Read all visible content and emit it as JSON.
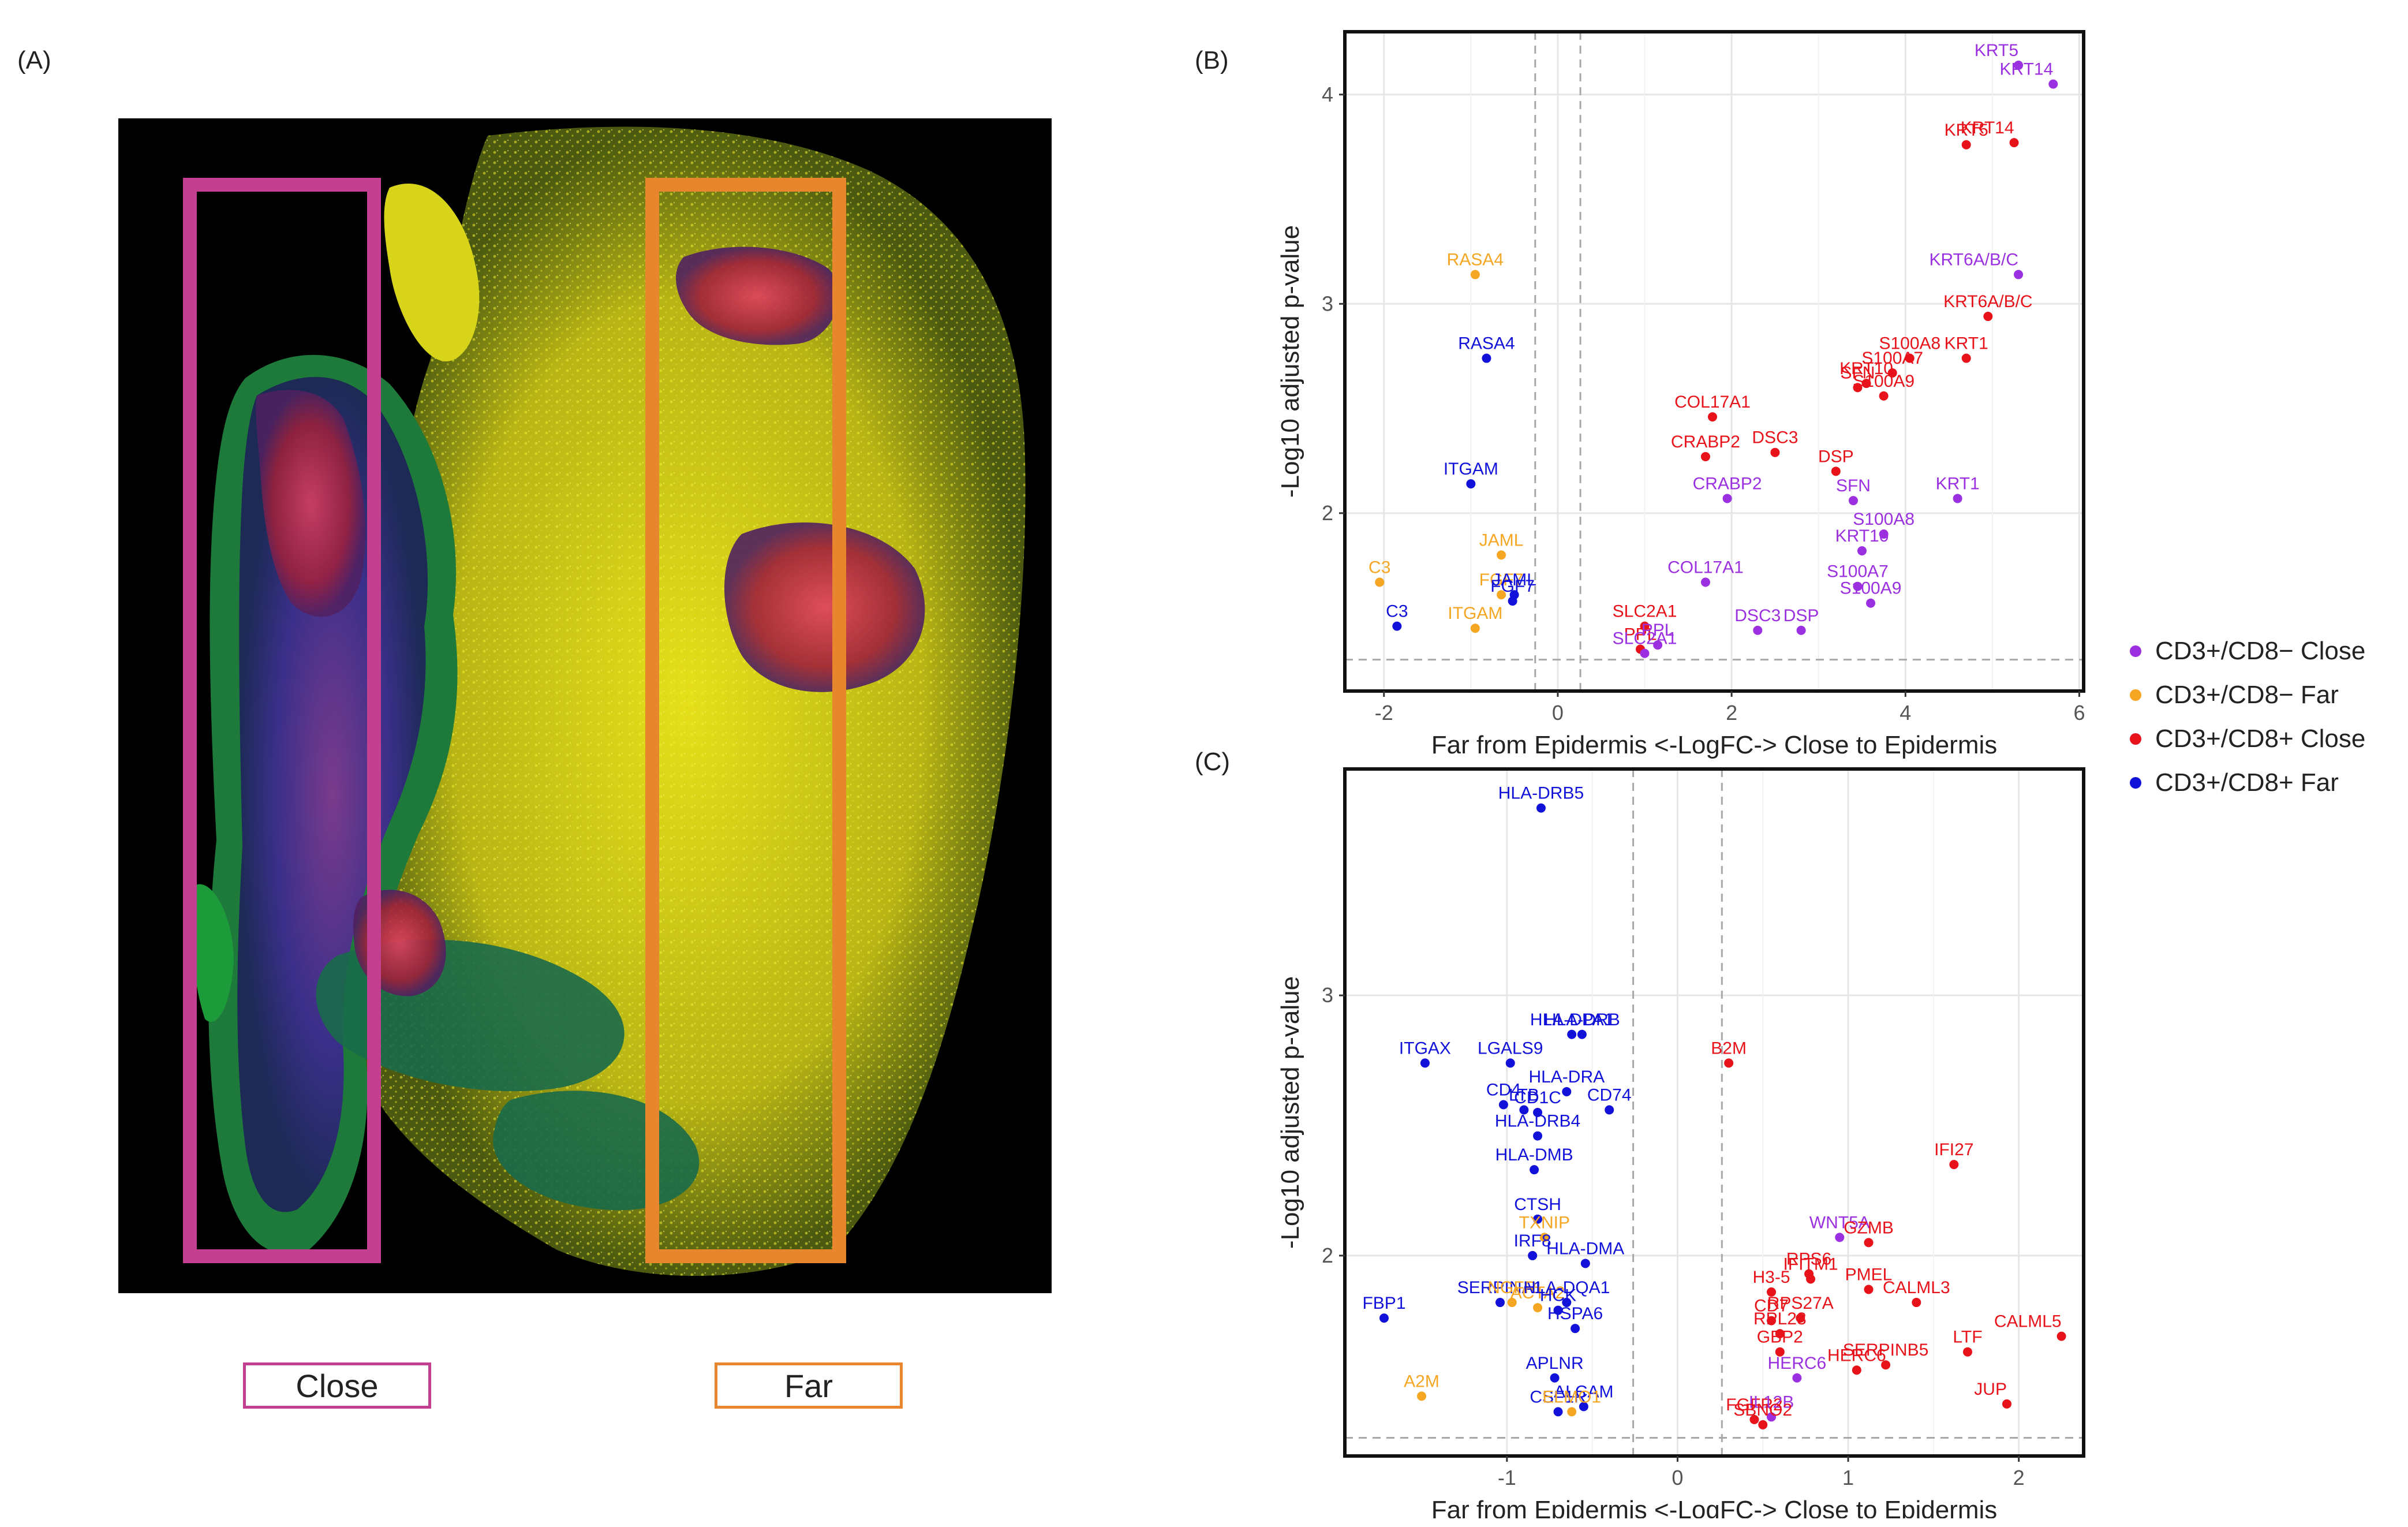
{
  "panels": {
    "a": "(A)",
    "b": "(B)",
    "c": "(C)"
  },
  "micrograph": {
    "regions": [
      {
        "label": "Close",
        "color": "#c2408f"
      },
      {
        "label": "Far",
        "color": "#e8862e"
      }
    ]
  },
  "colors": {
    "Close8m": "#9b30e0",
    "Far8m": "#f5a623",
    "Close8p": "#e8121a",
    "Far8p": "#1111d9"
  },
  "legend": [
    {
      "key": "Close8m",
      "label": "CD3+/CD8− Close"
    },
    {
      "key": "Far8m",
      "label": "CD3+/CD8− Far"
    },
    {
      "key": "Close8p",
      "label": "CD3+/CD8+ Close"
    },
    {
      "key": "Far8p",
      "label": "CD3+/CD8+ Far"
    }
  ],
  "chart_data": [
    {
      "id": "B",
      "type": "scatter",
      "xlabel": "Far from Epidermis <-LogFC-> Close to Epidermis",
      "ylabel": "-Log10 adjusted p-value",
      "xlim": [
        -2.45,
        6.05
      ],
      "ylim": [
        1.15,
        4.3
      ],
      "xticks": [
        -2,
        0,
        2,
        4,
        6
      ],
      "yticks": [
        2,
        3,
        4
      ],
      "vlines": [
        -0.26,
        0.26
      ],
      "hline": 1.3,
      "points": [
        {
          "g": "Close8m",
          "x": 5.3,
          "y": 4.14,
          "label": "KRT5"
        },
        {
          "g": "Close8m",
          "x": 5.7,
          "y": 4.05,
          "label": "KRT14"
        },
        {
          "g": "Close8p",
          "x": 4.7,
          "y": 3.76,
          "label": "KRT5"
        },
        {
          "g": "Close8p",
          "x": 5.25,
          "y": 3.77,
          "label": "KRT14"
        },
        {
          "g": "Close8m",
          "x": 5.3,
          "y": 3.14,
          "label": "KRT6A/B/C"
        },
        {
          "g": "Close8p",
          "x": 4.95,
          "y": 2.94,
          "label": "KRT6A/B/C"
        },
        {
          "g": "Close8p",
          "x": 3.85,
          "y": 2.67,
          "label": "S100A7"
        },
        {
          "g": "Close8p",
          "x": 4.05,
          "y": 2.74,
          "label": "S100A8"
        },
        {
          "g": "Close8p",
          "x": 3.55,
          "y": 2.62,
          "label": "KRT10"
        },
        {
          "g": "Close8p",
          "x": 4.7,
          "y": 2.74,
          "label": "KRT1"
        },
        {
          "g": "Close8p",
          "x": 3.45,
          "y": 2.6,
          "label": "SFN"
        },
        {
          "g": "Close8p",
          "x": 3.75,
          "y": 2.56,
          "label": "S100A9"
        },
        {
          "g": "Close8p",
          "x": 1.78,
          "y": 2.46,
          "label": "COL17A1"
        },
        {
          "g": "Close8p",
          "x": 2.5,
          "y": 2.29,
          "label": "DSC3"
        },
        {
          "g": "Close8p",
          "x": 1.7,
          "y": 2.27,
          "label": "CRABP2"
        },
        {
          "g": "Close8p",
          "x": 3.2,
          "y": 2.2,
          "label": "DSP"
        },
        {
          "g": "Close8m",
          "x": 1.95,
          "y": 2.07,
          "label": "CRABP2"
        },
        {
          "g": "Close8m",
          "x": 3.4,
          "y": 2.06,
          "label": "SFN"
        },
        {
          "g": "Close8m",
          "x": 4.6,
          "y": 2.07,
          "label": "KRT1"
        },
        {
          "g": "Close8m",
          "x": 3.75,
          "y": 1.9,
          "label": "S100A8"
        },
        {
          "g": "Close8m",
          "x": 3.5,
          "y": 1.82,
          "label": "KRT10"
        },
        {
          "g": "Close8m",
          "x": 1.7,
          "y": 1.67,
          "label": "COL17A1"
        },
        {
          "g": "Close8m",
          "x": 3.45,
          "y": 1.65,
          "label": "S100A7"
        },
        {
          "g": "Close8m",
          "x": 3.6,
          "y": 1.57,
          "label": "S100A9"
        },
        {
          "g": "Close8p",
          "x": 1.0,
          "y": 1.46,
          "label": "SLC2A1"
        },
        {
          "g": "Close8m",
          "x": 2.3,
          "y": 1.44,
          "label": "DSC3"
        },
        {
          "g": "Close8m",
          "x": 2.8,
          "y": 1.44,
          "label": "DSP"
        },
        {
          "g": "Close8p",
          "x": 0.95,
          "y": 1.35,
          "label": "PPL"
        },
        {
          "g": "Close8m",
          "x": 1.15,
          "y": 1.37,
          "label": "PPL"
        },
        {
          "g": "Close8m",
          "x": 1.0,
          "y": 1.33,
          "label": "SLC2A1"
        },
        {
          "g": "Far8m",
          "x": -0.95,
          "y": 3.14,
          "label": "RASA4"
        },
        {
          "g": "Far8p",
          "x": -0.82,
          "y": 2.74,
          "label": "RASA4"
        },
        {
          "g": "Far8p",
          "x": -1.0,
          "y": 2.14,
          "label": "ITGAM"
        },
        {
          "g": "Far8m",
          "x": -0.65,
          "y": 1.8,
          "label": "JAML"
        },
        {
          "g": "Far8m",
          "x": -2.05,
          "y": 1.67,
          "label": "C3"
        },
        {
          "g": "Far8m",
          "x": -0.65,
          "y": 1.61,
          "label": "FGF7"
        },
        {
          "g": "Far8p",
          "x": -0.5,
          "y": 1.61,
          "label": "JAML"
        },
        {
          "g": "Far8p",
          "x": -0.52,
          "y": 1.58,
          "label": "FGF7"
        },
        {
          "g": "Far8p",
          "x": -1.85,
          "y": 1.46,
          "label": "C3"
        },
        {
          "g": "Far8m",
          "x": -0.95,
          "y": 1.45,
          "label": "ITGAM"
        }
      ]
    },
    {
      "id": "C",
      "type": "scatter",
      "xlabel": "Far from Epidermis <-LogFC-> Close to Epidermis",
      "ylabel": "-Log10 adjusted p-value",
      "xlim": [
        -1.95,
        2.38
      ],
      "ylim": [
        1.23,
        3.87
      ],
      "xticks": [
        -1,
        0,
        1,
        2
      ],
      "yticks": [
        2,
        3
      ],
      "vlines": [
        -0.26,
        0.26
      ],
      "hline": 1.3,
      "points": [
        {
          "g": "Far8p",
          "x": -0.8,
          "y": 3.72,
          "label": "HLA-DRB5"
        },
        {
          "g": "Far8p",
          "x": -0.62,
          "y": 2.85,
          "label": "HLA-DPA1"
        },
        {
          "g": "Far8p",
          "x": -0.56,
          "y": 2.85,
          "label": "HLA-DRB"
        },
        {
          "g": "Far8p",
          "x": -1.48,
          "y": 2.74,
          "label": "ITGAX"
        },
        {
          "g": "Far8p",
          "x": -0.98,
          "y": 2.74,
          "label": "LGALS9"
        },
        {
          "g": "Far8p",
          "x": -0.65,
          "y": 2.63,
          "label": "HLA-DRA"
        },
        {
          "g": "Far8p",
          "x": -1.02,
          "y": 2.58,
          "label": "CD4"
        },
        {
          "g": "Far8p",
          "x": -0.9,
          "y": 2.56,
          "label": "LTB"
        },
        {
          "g": "Far8p",
          "x": -0.4,
          "y": 2.56,
          "label": "CD74"
        },
        {
          "g": "Far8p",
          "x": -0.82,
          "y": 2.55,
          "label": "CD1C"
        },
        {
          "g": "Far8p",
          "x": -0.82,
          "y": 2.46,
          "label": "HLA-DRB4"
        },
        {
          "g": "Far8p",
          "x": -0.84,
          "y": 2.33,
          "label": "HLA-DMB"
        },
        {
          "g": "Far8p",
          "x": -0.82,
          "y": 2.14,
          "label": "CTSH"
        },
        {
          "g": "Far8m",
          "x": -0.78,
          "y": 2.07,
          "label": "TXNIP"
        },
        {
          "g": "Far8p",
          "x": -0.85,
          "y": 2.0,
          "label": "IRF8"
        },
        {
          "g": "Far8p",
          "x": -0.54,
          "y": 1.97,
          "label": "HLA-DMA"
        },
        {
          "g": "Far8p",
          "x": -1.04,
          "y": 1.82,
          "label": "SERPINA1"
        },
        {
          "g": "Far8m",
          "x": -0.97,
          "y": 1.82,
          "label": "NGFR"
        },
        {
          "g": "Far8m",
          "x": -0.82,
          "y": 1.8,
          "label": "ACTA2"
        },
        {
          "g": "Far8p",
          "x": -0.65,
          "y": 1.82,
          "label": "HLA-DQA1"
        },
        {
          "g": "Far8p",
          "x": -0.7,
          "y": 1.79,
          "label": "HCK"
        },
        {
          "g": "Far8p",
          "x": -1.72,
          "y": 1.76,
          "label": "FBP1"
        },
        {
          "g": "Far8p",
          "x": -0.6,
          "y": 1.72,
          "label": "HSPA6"
        },
        {
          "g": "Far8p",
          "x": -0.72,
          "y": 1.53,
          "label": "APLNR"
        },
        {
          "g": "Far8m",
          "x": -1.5,
          "y": 1.46,
          "label": "A2M"
        },
        {
          "g": "Far8p",
          "x": -0.55,
          "y": 1.42,
          "label": "ALCAM"
        },
        {
          "g": "Far8p",
          "x": -0.7,
          "y": 1.4,
          "label": "CSF1R"
        },
        {
          "g": "Far8m",
          "x": -0.62,
          "y": 1.4,
          "label": "ELMO1"
        },
        {
          "g": "Close8p",
          "x": 0.3,
          "y": 2.74,
          "label": "B2M"
        },
        {
          "g": "Close8p",
          "x": 1.62,
          "y": 2.35,
          "label": "IFI27"
        },
        {
          "g": "Close8m",
          "x": 0.95,
          "y": 2.07,
          "label": "WNT5A"
        },
        {
          "g": "Close8p",
          "x": 1.12,
          "y": 2.05,
          "label": "GZMB"
        },
        {
          "g": "Close8p",
          "x": 0.77,
          "y": 1.93,
          "label": "RPS6"
        },
        {
          "g": "Close8p",
          "x": 0.78,
          "y": 1.91,
          "label": "IFITM1"
        },
        {
          "g": "Close8p",
          "x": 1.12,
          "y": 1.87,
          "label": "PMEL"
        },
        {
          "g": "Close8p",
          "x": 0.55,
          "y": 1.86,
          "label": "H3-5"
        },
        {
          "g": "Close8p",
          "x": 1.4,
          "y": 1.82,
          "label": "CALML3"
        },
        {
          "g": "Close8p",
          "x": 0.72,
          "y": 1.76,
          "label": "RPS27A"
        },
        {
          "g": "Close8p",
          "x": 0.55,
          "y": 1.75,
          "label": "CD7"
        },
        {
          "g": "Close8p",
          "x": 0.6,
          "y": 1.7,
          "label": "RPL23"
        },
        {
          "g": "Close8p",
          "x": 2.25,
          "y": 1.69,
          "label": "CALML5"
        },
        {
          "g": "Close8p",
          "x": 0.6,
          "y": 1.63,
          "label": "GBP2"
        },
        {
          "g": "Close8p",
          "x": 1.22,
          "y": 1.58,
          "label": "SERPINB5"
        },
        {
          "g": "Close8p",
          "x": 1.7,
          "y": 1.63,
          "label": "LTF"
        },
        {
          "g": "Close8p",
          "x": 1.05,
          "y": 1.56,
          "label": "HERC6"
        },
        {
          "g": "Close8m",
          "x": 0.7,
          "y": 1.53,
          "label": "HERC6"
        },
        {
          "g": "Close8p",
          "x": 1.93,
          "y": 1.43,
          "label": "JUP"
        },
        {
          "g": "Close8p",
          "x": 0.45,
          "y": 1.37,
          "label": "FGFR2"
        },
        {
          "g": "Close8m",
          "x": 0.55,
          "y": 1.38,
          "label": "IL12B"
        },
        {
          "g": "Close8p",
          "x": 0.5,
          "y": 1.35,
          "label": "SBNO2"
        }
      ]
    }
  ]
}
